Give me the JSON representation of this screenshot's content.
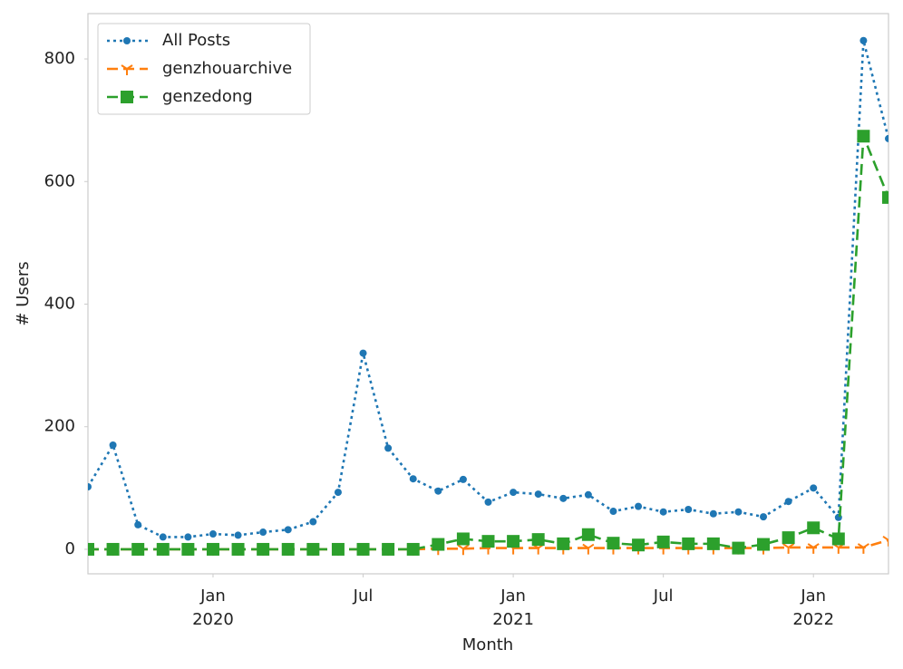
{
  "chart_data": {
    "type": "line",
    "x": [
      "2019-08",
      "2019-09",
      "2019-10",
      "2019-11",
      "2019-12",
      "2020-01",
      "2020-02",
      "2020-03",
      "2020-04",
      "2020-05",
      "2020-06",
      "2020-07",
      "2020-08",
      "2020-09",
      "2020-10",
      "2020-11",
      "2020-12",
      "2021-01",
      "2021-02",
      "2021-03",
      "2021-04",
      "2021-05",
      "2021-06",
      "2021-07",
      "2021-08",
      "2021-09",
      "2021-10",
      "2021-11",
      "2021-12",
      "2022-01",
      "2022-02",
      "2022-03",
      "2022-04"
    ],
    "series": [
      {
        "name": "All Posts",
        "color": "#1f77b4",
        "marker": "circle",
        "linestyle": "dotted",
        "values": [
          102,
          170,
          40,
          20,
          20,
          25,
          23,
          28,
          32,
          45,
          93,
          320,
          165,
          115,
          95,
          114,
          77,
          93,
          90,
          83,
          89,
          62,
          70,
          61,
          65,
          58,
          61,
          53,
          78,
          100,
          52,
          830,
          670
        ]
      },
      {
        "name": "genzhouarchive",
        "color": "#ff7f0e",
        "marker": "tri_down",
        "linestyle": "dashed",
        "values": [
          0,
          0,
          0,
          0,
          0,
          0,
          0,
          0,
          0,
          0,
          0,
          0,
          0,
          0,
          1,
          1,
          2,
          2,
          2,
          2,
          2,
          2,
          2,
          2,
          2,
          2,
          2,
          2,
          3,
          3,
          3,
          3,
          15
        ]
      },
      {
        "name": "genzedong",
        "color": "#2ca02c",
        "marker": "square",
        "linestyle": "dashed",
        "values": [
          0,
          0,
          0,
          0,
          0,
          0,
          0,
          0,
          0,
          0,
          0,
          0,
          0,
          0,
          8,
          17,
          13,
          13,
          16,
          9,
          24,
          10,
          7,
          12,
          9,
          9,
          2,
          8,
          19,
          35,
          17,
          674,
          574
        ]
      }
    ],
    "xlabel": "Month",
    "ylabel": "# Users",
    "xlim": [
      "2019-08",
      "2022-04"
    ],
    "xticks": [
      {
        "value": "2020-01",
        "label": "Jan\n2020"
      },
      {
        "value": "2020-07",
        "label": "Jul"
      },
      {
        "value": "2021-01",
        "label": "Jan\n2021"
      },
      {
        "value": "2021-07",
        "label": "Jul"
      },
      {
        "value": "2022-01",
        "label": "Jan\n2022"
      }
    ],
    "ylim": [
      -40,
      874
    ],
    "yticks": [
      0,
      200,
      400,
      600,
      800
    ],
    "grid": false,
    "legend": "upper left"
  }
}
